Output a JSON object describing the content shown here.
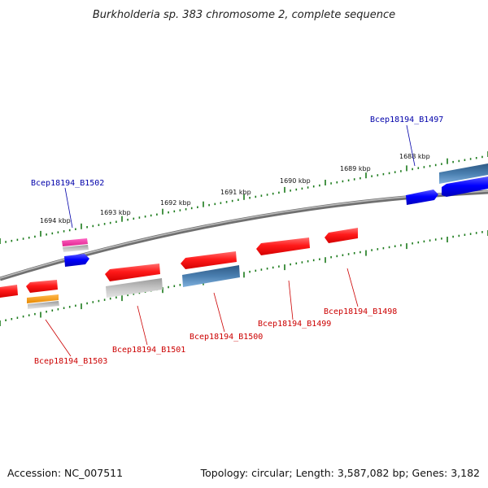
{
  "title": "Burkholderia sp. 383 chromosome 2, complete sequence",
  "footer": {
    "accession": "Accession: NC_007511",
    "summary": "Topology: circular; Length: 3,587,082 bp; Genes: 3,182"
  },
  "colors": {
    "backbone": "#808080",
    "tick": "#1a7a1a",
    "label_forward": "#0000aa",
    "label_reverse": "#cc0000",
    "red": "#ff1a1a",
    "blue": "#0000ff",
    "steelblue": "#4a7fb0",
    "gray": "#bdbdbd",
    "pink": "#ff33aa",
    "orange": "#ff9900"
  },
  "ticks": {
    "labels": [
      "1688 kbp",
      "1689 kbp",
      "1690 kbp",
      "1691 kbp",
      "1692 kbp",
      "1693 kbp",
      "1694 kbp"
    ]
  },
  "gene_labels": {
    "forward": [
      "Bcep18194_B1497",
      "Bcep18194_B1502"
    ],
    "reverse": [
      "Bcep18194_B1498",
      "Bcep18194_B1499",
      "Bcep18194_B1500",
      "Bcep18194_B1501",
      "Bcep18194_B1503"
    ]
  }
}
